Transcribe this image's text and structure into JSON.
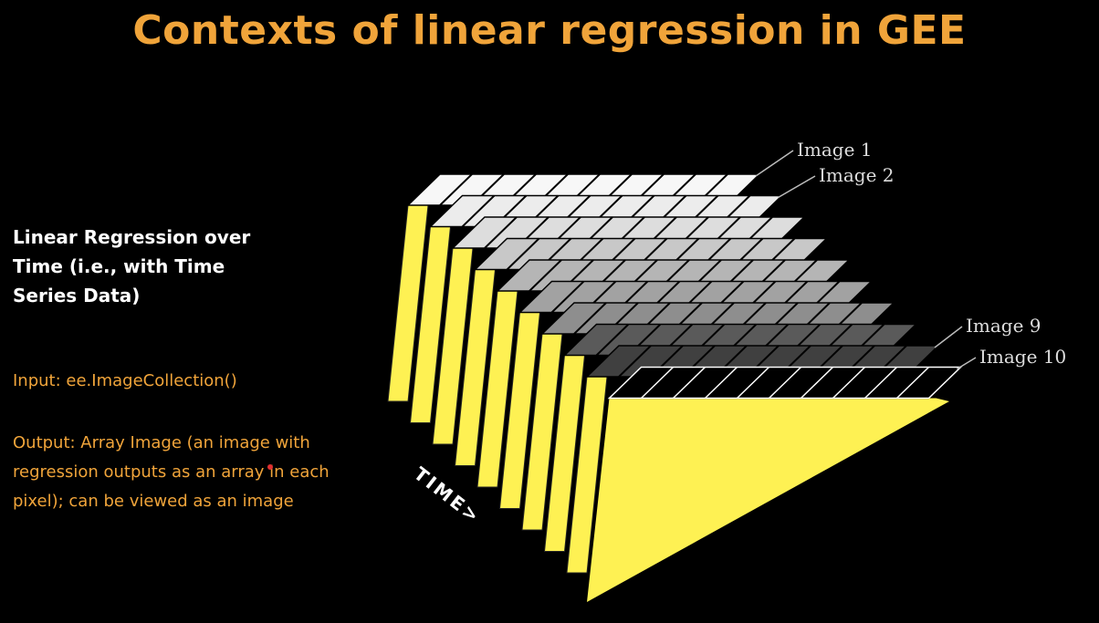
{
  "title": "Contexts of linear regression in GEE",
  "heading": "Linear Regression over Time (i.e., with Time Series Data)",
  "input": "Input: ee.ImageCollection()",
  "output": "Output: Array Image (an image with regression outputs as an array in each pixel); can be viewed as an image",
  "axis_label": "TIME>",
  "image_labels": [
    {
      "text": "Image 1",
      "layer": 0
    },
    {
      "text": "Image 2",
      "layer": 1
    },
    {
      "text": "Image 9",
      "layer": 8
    },
    {
      "text": "Image 10",
      "layer": 9
    }
  ],
  "colors": {
    "title": "#f0a43a",
    "text_accent": "#f0a43a",
    "heading": "#ffffff",
    "layer_face": "#fef153",
    "layer_edge": "#222222",
    "grid_line": "#000000",
    "layer_tops": [
      "#f7f7f7",
      "#ececec",
      "#dddddd",
      "#c8c8c8",
      "#b5b5b5",
      "#a2a2a2",
      "#8e8e8e",
      "#5a5a5a",
      "#404040",
      "#000000"
    ]
  },
  "stack": {
    "layers": 10,
    "grid_columns": 10
  }
}
